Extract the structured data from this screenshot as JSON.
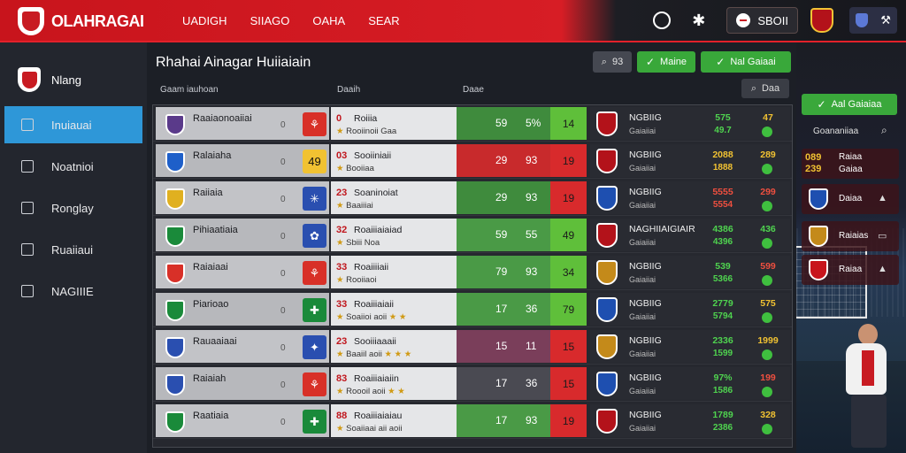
{
  "app": {
    "name": "OLAHRAGAI"
  },
  "header": {
    "nav": [
      "UADIGH",
      "SIIAGO",
      "OAHA",
      "SEAR"
    ],
    "user_label": "SBOII",
    "icons": [
      "clock-icon",
      "gear-icon",
      "user-icon",
      "club-icon",
      "shield-icon",
      "tools-icon"
    ]
  },
  "sidebar": {
    "brand": "Nlang",
    "items": [
      {
        "label": "Inuiauai",
        "icon": "edit-icon",
        "active": true
      },
      {
        "label": "Noatnioi",
        "icon": "square-icon",
        "active": false
      },
      {
        "label": "Ronglay",
        "icon": "pencil-icon",
        "active": false
      },
      {
        "label": "Ruaiiaui",
        "icon": "box-icon",
        "active": false
      },
      {
        "label": "NAGIIIE",
        "icon": "wrench-icon",
        "active": false
      }
    ]
  },
  "main": {
    "title": "Rhahai Ainagar Huiiaiain",
    "sub_labels": [
      "Gaam iauhoan",
      "Daaih",
      "Daae"
    ]
  },
  "toolbar": {
    "filter_label": "93",
    "btn1_label": "Maine",
    "btn2_label": "Nal Gaiaai",
    "search_btn_label": "Daa"
  },
  "colors": {
    "brand_red": "#c8141c",
    "accent_blue": "#2e97d8",
    "accent_green": "#39a83a"
  },
  "table": {
    "rows": [
      {
        "team": "Raaiaonoaiiai",
        "num": "0",
        "tile_text": "⚘",
        "tile_color": "#d83028",
        "crest": "#5a3a8a",
        "det_num": "0",
        "det_title": "Roiiia",
        "det_sub": "Rooiinoii Gaa",
        "det_stars": "",
        "score_a": "59",
        "score_b": "5%",
        "score_bg": "#3f8b3d",
        "box_val": "14",
        "box_color": "#5fbf3a",
        "m_crest": "#b3121a",
        "m_name": "NGBIIG",
        "m_sub": "Gaiaiiai",
        "m_v1": "575",
        "m_v2": "49.7",
        "m_v1_color": "#4fd34f",
        "m_v3": "47",
        "m_v3_color": "#f1c232",
        "m_dot": "#3fbf3f"
      },
      {
        "team": "Ralaiaha",
        "num": "0",
        "tile_text": "49",
        "tile_color": "#f1c232",
        "crest": "#1e5fc9",
        "det_num": "03",
        "det_title": "Sooiiniaii",
        "det_sub": "Booiiaa",
        "det_stars": "",
        "score_a": "29",
        "score_b": "93",
        "score_bg": "#c82a2c",
        "box_val": "19",
        "box_color": "#d82a2c",
        "m_crest": "#b3121a",
        "m_name": "NGBIIG",
        "m_sub": "Gaiaiiai",
        "m_v1": "2088",
        "m_v2": "1888",
        "m_v1_color": "#f1c232",
        "m_v3": "289",
        "m_v3_color": "#f1c232",
        "m_dot": "#3fbf3f"
      },
      {
        "team": "Raiiaia",
        "num": "0",
        "tile_text": "✳",
        "tile_color": "#2a4fb0",
        "crest": "#e0b020",
        "det_num": "23",
        "det_title": "Soaninoiat",
        "det_sub": "Baaiiiai",
        "det_stars": "",
        "score_a": "29",
        "score_b": "93",
        "score_bg": "#3f8b3d",
        "box_val": "19",
        "box_color": "#d82a2c",
        "m_crest": "#1e4fb0",
        "m_name": "NGBIIG",
        "m_sub": "Gaiaiiai",
        "m_v1": "5555",
        "m_v2": "5554",
        "m_v1_color": "#ef4f3f",
        "m_v3": "299",
        "m_v3_color": "#ef4f3f",
        "m_dot": "#3fbf3f"
      },
      {
        "team": "Pihiaatiaia",
        "num": "0",
        "tile_text": "✿",
        "tile_color": "#2a4fb0",
        "crest": "#1a8a3a",
        "det_num": "32",
        "det_title": "Roaiiiaiaiad",
        "det_sub": "Sbiii Noa",
        "det_stars": "",
        "score_a": "59",
        "score_b": "55",
        "score_bg": "#4a9a46",
        "box_val": "49",
        "box_color": "#5fbf3a",
        "m_crest": "#b3121a",
        "m_name": "NAGHIIAIGIAIR",
        "m_sub": "Gaiaiiai",
        "m_v1": "4386",
        "m_v2": "4396",
        "m_v1_color": "#4fd34f",
        "m_v3": "436",
        "m_v3_color": "#4fd34f",
        "m_dot": "#3fbf3f"
      },
      {
        "team": "Raiaiaai",
        "num": "0",
        "tile_text": "⚘",
        "tile_color": "#d83028",
        "crest": "#d83028",
        "det_num": "33",
        "det_title": "Roaiiiiaii",
        "det_sub": "Rooiiaoi",
        "det_stars": "",
        "score_a": "79",
        "score_b": "93",
        "score_bg": "#4a9a46",
        "box_val": "34",
        "box_color": "#5fbf3a",
        "m_crest": "#c48a1a",
        "m_name": "NGBIIG",
        "m_sub": "Gaiaiiai",
        "m_v1": "539",
        "m_v2": "5366",
        "m_v1_color": "#4fd34f",
        "m_v3": "599",
        "m_v3_color": "#ef4f3f",
        "m_dot": "#3fbf3f"
      },
      {
        "team": "Piarioao",
        "num": "0",
        "tile_text": "✚",
        "tile_color": "#1a8a3a",
        "crest": "#1a8a3a",
        "det_num": "33",
        "det_title": "Roaiiiaiaii",
        "det_sub": "Soaiioi aoii",
        "det_stars": "★ ★",
        "score_a": "17",
        "score_b": "36",
        "score_bg": "#4a9a46",
        "box_val": "79",
        "box_color": "#5fbf3a",
        "m_crest": "#1e4fb0",
        "m_name": "NGBIIG",
        "m_sub": "Gaiaiiai",
        "m_v1": "2779",
        "m_v2": "5794",
        "m_v1_color": "#4fd34f",
        "m_v3": "575",
        "m_v3_color": "#f1c232",
        "m_dot": "#3fbf3f"
      },
      {
        "team": "Rauaaiaai",
        "num": "0",
        "tile_text": "✦",
        "tile_color": "#2a4fb0",
        "crest": "#2a4fb0",
        "det_num": "23",
        "det_title": "Sooiiiaaaii",
        "det_sub": "Baaiil aoii",
        "det_stars": "★ ★ ★",
        "score_a": "15",
        "score_b": "11",
        "score_bg": "#7a3e5a",
        "box_val": "15",
        "box_color": "#d82a2c",
        "m_crest": "#c48a1a",
        "m_name": "NGBIIG",
        "m_sub": "Gaiaiiai",
        "m_v1": "2336",
        "m_v2": "1599",
        "m_v1_color": "#4fd34f",
        "m_v3": "1999",
        "m_v3_color": "#f1c232",
        "m_dot": "#3fbf3f"
      },
      {
        "team": "Raiaiah",
        "num": "0",
        "tile_text": "⚘",
        "tile_color": "#d83028",
        "crest": "#2a4fb0",
        "det_num": "83",
        "det_title": "Roaiiiaiaiin",
        "det_sub": "Roooil aoii",
        "det_stars": "★ ★",
        "score_a": "17",
        "score_b": "36",
        "score_bg": "#4a4a52",
        "box_val": "15",
        "box_color": "#d82a2c",
        "m_crest": "#1e4fb0",
        "m_name": "NGBIIG",
        "m_sub": "Gaiaiiai",
        "m_v1": "97%",
        "m_v2": "1586",
        "m_v1_color": "#4fd34f",
        "m_v3": "199",
        "m_v3_color": "#ef4f3f",
        "m_dot": "#3fbf3f"
      },
      {
        "team": "Raatiaia",
        "num": "0",
        "tile_text": "✚",
        "tile_color": "#1a8a3a",
        "crest": "#1a8a3a",
        "det_num": "88",
        "det_title": "Roaiiiaiaiau",
        "det_sub": "Soaiiaai aii aoii",
        "det_stars": "",
        "score_a": "17",
        "score_b": "93",
        "score_bg": "#4a9a46",
        "box_val": "19",
        "box_color": "#d82a2c",
        "m_crest": "#b3121a",
        "m_name": "NGBIIG",
        "m_sub": "Gaiaiiai",
        "m_v1": "1789",
        "m_v2": "2386",
        "m_v1_color": "#4fd34f",
        "m_v3": "328",
        "m_v3_color": "#f1c232",
        "m_dot": "#3fbf3f"
      }
    ]
  },
  "right_panel": {
    "button_label": "Aal Gaiaiaa",
    "header_label": "Goananiiaa",
    "cards": [
      {
        "label": "Raiaa",
        "sub": "Gaiaa",
        "score_top": "089",
        "score_bottom": "239",
        "crest": "#f1c232"
      },
      {
        "label": "Daiaa",
        "sub": "",
        "score_top": "",
        "score_bottom": "",
        "crest": "#1e4fb0",
        "icon": "▲"
      },
      {
        "label": "Raiaias",
        "sub": "",
        "score_top": "",
        "score_bottom": "",
        "crest": "#c48a1a",
        "icon": "▭"
      },
      {
        "label": "Raiaa",
        "sub": "",
        "score_top": "",
        "score_bottom": "",
        "crest": "#c8141c",
        "icon": "▲"
      }
    ]
  }
}
